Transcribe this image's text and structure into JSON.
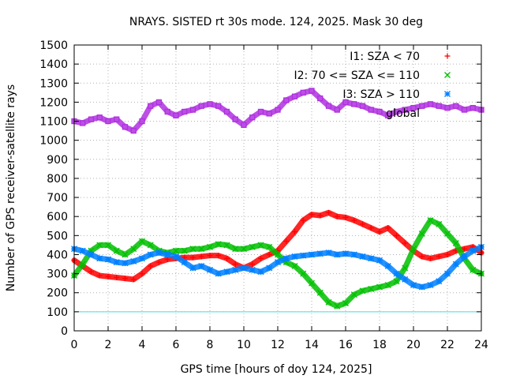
{
  "chart_data": {
    "type": "scatter",
    "title": "NRAYS. SISTED rt 30s mode. 124, 2025. Mask 30 deg",
    "xlabel": "GPS time [hours of doy 124, 2025]",
    "ylabel": "Number of GPS receiver-satellite rays",
    "xlim": [
      0,
      24
    ],
    "ylim": [
      0,
      1500
    ],
    "xticks": [
      0,
      2,
      4,
      6,
      8,
      10,
      12,
      14,
      16,
      18,
      20,
      22,
      24
    ],
    "yticks": [
      0,
      100,
      200,
      300,
      400,
      500,
      600,
      700,
      800,
      900,
      1000,
      1100,
      1200,
      1300,
      1400,
      1500
    ],
    "grid": true,
    "legend_position": "top-right",
    "reference_line": {
      "y": 100,
      "color": "#40e0e0"
    },
    "series": [
      {
        "name": "I1: SZA < 70",
        "marker": "+",
        "color": "#ff0000",
        "x": [
          0,
          0.5,
          1,
          1.5,
          2,
          2.5,
          3,
          3.5,
          4,
          4.5,
          5,
          5.5,
          6,
          6.5,
          7,
          7.5,
          8,
          8.5,
          9,
          9.5,
          10,
          10.5,
          11,
          11.5,
          12,
          12.5,
          13,
          13.5,
          14,
          14.5,
          15,
          15.5,
          16,
          16.5,
          17,
          17.5,
          18,
          18.5,
          19,
          19.5,
          20,
          20.5,
          21,
          21.5,
          22,
          22.5,
          23,
          23.5,
          24
        ],
        "values": [
          370,
          340,
          310,
          290,
          285,
          280,
          275,
          270,
          300,
          340,
          360,
          375,
          380,
          385,
          385,
          390,
          395,
          395,
          380,
          350,
          330,
          350,
          380,
          400,
          420,
          470,
          520,
          580,
          610,
          605,
          620,
          600,
          595,
          580,
          560,
          540,
          520,
          540,
          500,
          460,
          420,
          390,
          380,
          390,
          400,
          420,
          430,
          440,
          410
        ]
      },
      {
        "name": "I2: 70 <= SZA <= 110",
        "marker": "x",
        "color": "#00c000",
        "x": [
          0,
          0.5,
          1,
          1.5,
          2,
          2.5,
          3,
          3.5,
          4,
          4.5,
          5,
          5.5,
          6,
          6.5,
          7,
          7.5,
          8,
          8.5,
          9,
          9.5,
          10,
          10.5,
          11,
          11.5,
          12,
          12.5,
          13,
          13.5,
          14,
          14.5,
          15,
          15.5,
          16,
          16.5,
          17,
          17.5,
          18,
          18.5,
          19,
          19.5,
          20,
          20.5,
          21,
          21.5,
          22,
          22.5,
          23,
          23.5,
          24
        ],
        "values": [
          290,
          350,
          420,
          450,
          450,
          420,
          400,
          430,
          470,
          450,
          420,
          410,
          420,
          420,
          430,
          430,
          440,
          455,
          450,
          430,
          430,
          440,
          450,
          440,
          400,
          360,
          340,
          300,
          250,
          200,
          150,
          130,
          145,
          190,
          210,
          220,
          230,
          240,
          260,
          330,
          430,
          510,
          580,
          560,
          510,
          460,
          380,
          320,
          300
        ]
      },
      {
        "name": "I3: SZA > 110",
        "marker": "*",
        "color": "#0080ff",
        "x": [
          0,
          0.5,
          1,
          1.5,
          2,
          2.5,
          3,
          3.5,
          4,
          4.5,
          5,
          5.5,
          6,
          6.5,
          7,
          7.5,
          8,
          8.5,
          9,
          9.5,
          10,
          10.5,
          11,
          11.5,
          12,
          12.5,
          13,
          13.5,
          14,
          14.5,
          15,
          15.5,
          16,
          16.5,
          17,
          17.5,
          18,
          18.5,
          19,
          19.5,
          20,
          20.5,
          21,
          21.5,
          22,
          22.5,
          23,
          23.5,
          24
        ],
        "values": [
          430,
          420,
          400,
          380,
          375,
          360,
          355,
          365,
          380,
          400,
          410,
          400,
          390,
          360,
          330,
          340,
          320,
          300,
          310,
          320,
          330,
          320,
          310,
          330,
          360,
          380,
          390,
          395,
          400,
          405,
          410,
          400,
          405,
          400,
          390,
          380,
          370,
          340,
          300,
          270,
          240,
          230,
          240,
          260,
          300,
          350,
          390,
          420,
          440
        ]
      },
      {
        "name": "global",
        "marker": "square",
        "color": "#b030e0",
        "x": [
          0,
          0.5,
          1,
          1.5,
          2,
          2.5,
          3,
          3.5,
          4,
          4.5,
          5,
          5.5,
          6,
          6.5,
          7,
          7.5,
          8,
          8.5,
          9,
          9.5,
          10,
          10.5,
          11,
          11.5,
          12,
          12.5,
          13,
          13.5,
          14,
          14.5,
          15,
          15.5,
          16,
          16.5,
          17,
          17.5,
          18,
          18.5,
          19,
          19.5,
          20,
          20.5,
          21,
          21.5,
          22,
          22.5,
          23,
          23.5,
          24
        ],
        "values": [
          1100,
          1090,
          1110,
          1120,
          1100,
          1110,
          1070,
          1050,
          1100,
          1180,
          1200,
          1150,
          1130,
          1150,
          1160,
          1180,
          1190,
          1180,
          1150,
          1110,
          1080,
          1120,
          1150,
          1140,
          1160,
          1210,
          1230,
          1250,
          1260,
          1220,
          1180,
          1160,
          1200,
          1190,
          1180,
          1160,
          1150,
          1130,
          1150,
          1160,
          1170,
          1180,
          1190,
          1180,
          1170,
          1180,
          1160,
          1170,
          1160
        ]
      }
    ]
  }
}
